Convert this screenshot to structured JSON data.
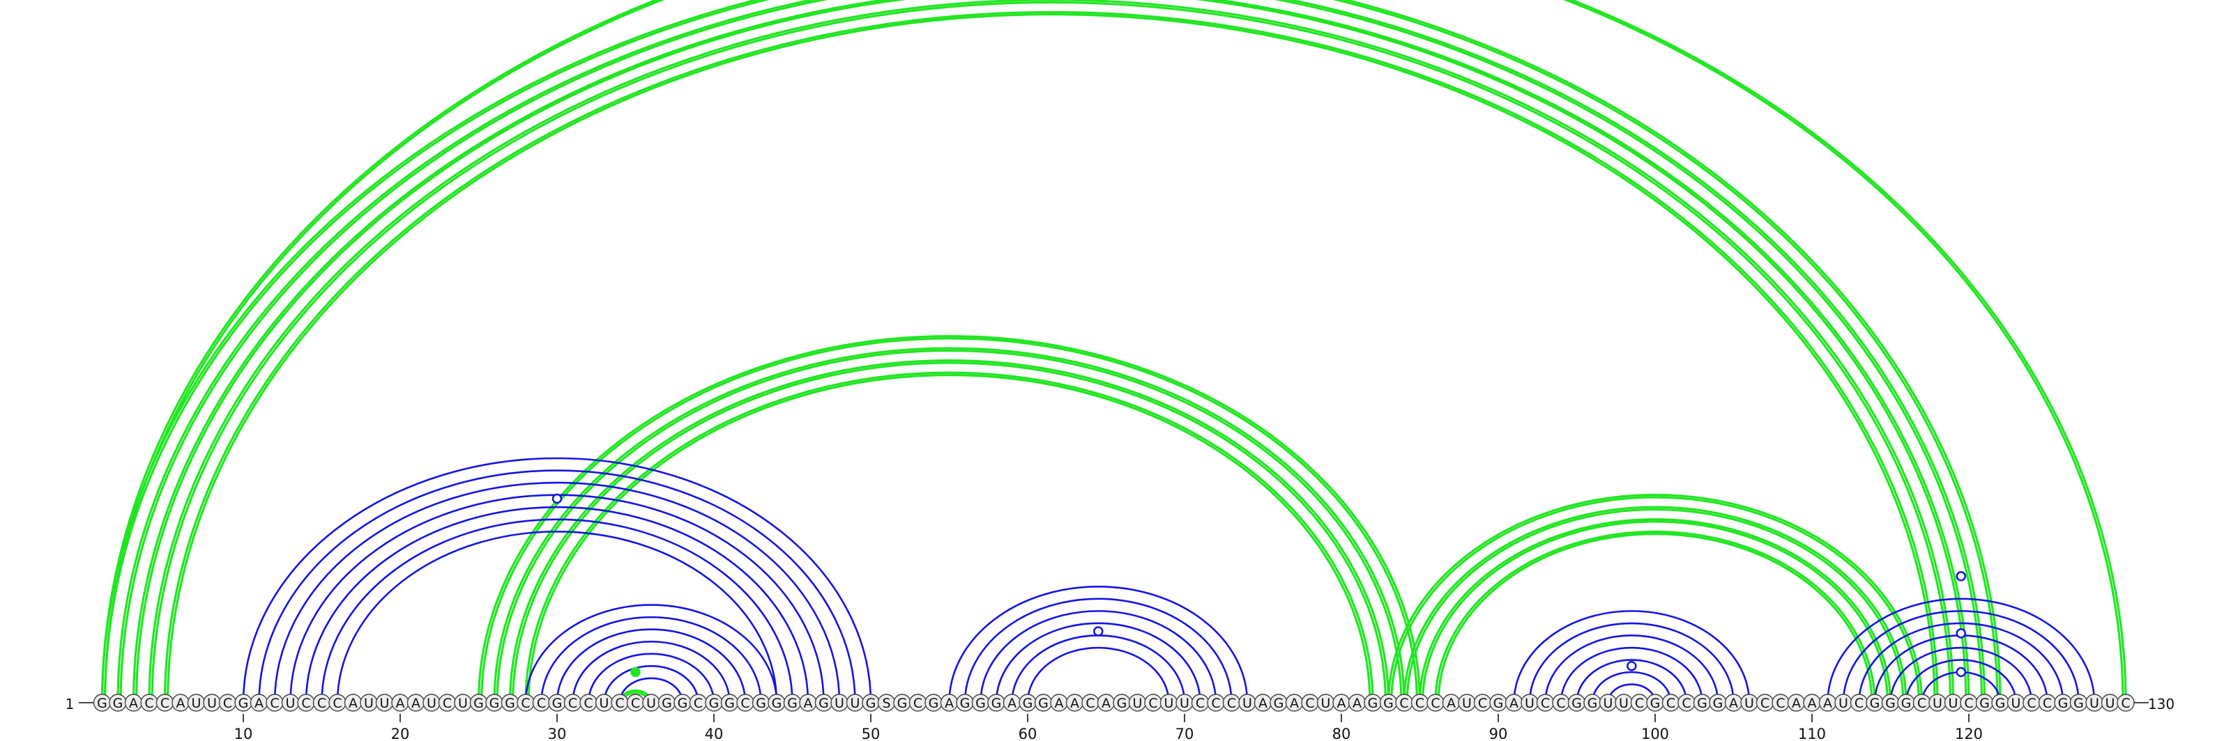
{
  "diagram": {
    "sequence": "GGACCAUUCGACUCCCAUUAAUCUGGGCCGCCUCCUGGCGGCGGGAGUUGSGCGAGGGAGGAACAGUCUUCCCUAGACUAAGGCCCAUCGAUCCGGUUCGCCGGAUCCAAAUCGGGCUUCGGUCCGGUUC",
    "length": 130,
    "start_label": "1",
    "end_label": "130",
    "tick_labels": [
      "10",
      "20",
      "30",
      "40",
      "50",
      "60",
      "70",
      "80",
      "90",
      "100",
      "110",
      "120"
    ],
    "colors": {
      "blue_arc": "#1414e6",
      "green_arc": "#22e622",
      "nucleotide_fill": "#eeeeee",
      "nucleotide_stroke": "#444444",
      "text": "#111111"
    },
    "nested_pairs_blue": [
      {
        "name": "helix-10-50",
        "i": 10,
        "j": 50,
        "n": 7,
        "color": "blue"
      },
      {
        "name": "helix-28-44",
        "i": 28,
        "j": 44,
        "n": 7,
        "color": "blue"
      },
      {
        "name": "helix-55-74",
        "i": 55,
        "j": 74,
        "n": 6,
        "color": "blue"
      },
      {
        "name": "helix-91-106",
        "i": 91,
        "j": 106,
        "n": 7,
        "color": "blue"
      },
      {
        "name": "helix-111-128",
        "i": 111,
        "j": 128,
        "n": 7,
        "color": "blue"
      }
    ],
    "pseudoknot_pairs_green": [
      {
        "name": "pk-1-122",
        "i": 1,
        "j": 122,
        "n": 5,
        "color": "green"
      },
      {
        "name": "pk-1-130",
        "i": 1,
        "j": 130,
        "n": 1,
        "color": "green"
      },
      {
        "name": "pk-25-85",
        "i": 25,
        "j": 85,
        "n": 4,
        "color": "green"
      },
      {
        "name": "pk-83-117",
        "i": 83,
        "j": 117,
        "n": 4,
        "color": "green"
      },
      {
        "name": "pk-34-36",
        "i": 34,
        "j": 36,
        "n": 1,
        "color": "green"
      }
    ],
    "markers": [
      {
        "name": "marker-open-30",
        "pos": 30.0,
        "level": 1.0,
        "filled": false
      },
      {
        "name": "marker-open-64",
        "pos": 64.5,
        "level": 0.35,
        "filled": false
      },
      {
        "name": "marker-open-98",
        "pos": 98.5,
        "level": 0.18,
        "filled": false
      },
      {
        "name": "marker-open-119a",
        "pos": 119.5,
        "level": 0.62,
        "filled": false
      },
      {
        "name": "marker-open-119b",
        "pos": 119.5,
        "level": 0.34,
        "filled": false
      },
      {
        "name": "marker-open-119c",
        "pos": 119.5,
        "level": 0.15,
        "filled": false
      },
      {
        "name": "marker-filled-35",
        "pos": 35.0,
        "level": 0.15,
        "filled": true
      }
    ]
  }
}
